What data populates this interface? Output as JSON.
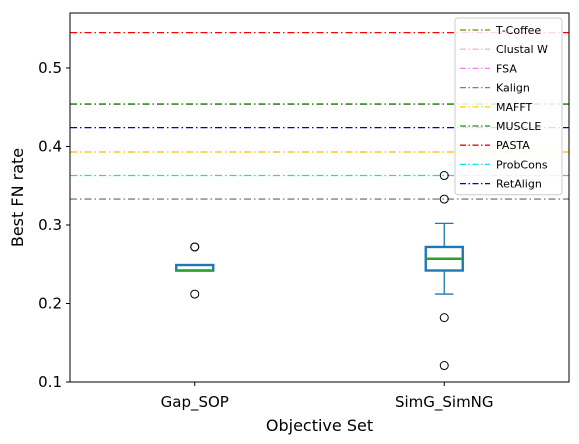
{
  "chart_data": {
    "type": "box",
    "xlabel": "Objective Set",
    "ylabel": "Best FN rate",
    "ylim": [
      0.1,
      0.57
    ],
    "yticks": [
      0.1,
      0.2,
      0.3,
      0.4,
      0.5
    ],
    "categories": [
      "Gap_SOP",
      "SimG_SimNG"
    ],
    "boxes": [
      {
        "name": "Gap_SOP",
        "whisker_low": 0.242,
        "q1": 0.242,
        "median": 0.242,
        "q3": 0.249,
        "whisker_high": 0.249,
        "outliers": [
          0.212,
          0.272,
          0.272
        ]
      },
      {
        "name": "SimG_SimNG",
        "whisker_low": 0.212,
        "q1": 0.242,
        "median": 0.257,
        "q3": 0.272,
        "whisker_high": 0.302,
        "outliers": [
          0.121,
          0.182,
          0.333,
          0.363
        ]
      }
    ],
    "reference_lines": [
      {
        "name": "T-Coffee",
        "value": 0.454,
        "color": "#808000"
      },
      {
        "name": "Clustal W",
        "value": 0.393,
        "color": "#ffb6c1"
      },
      {
        "name": "FSA",
        "value": 0.393,
        "color": "#ee82ee"
      },
      {
        "name": "Kalign",
        "value": 0.333,
        "color": "#808080"
      },
      {
        "name": "MAFFT",
        "value": 0.393,
        "color": "#ffd700"
      },
      {
        "name": "MUSCLE",
        "value": 0.454,
        "color": "#228b22"
      },
      {
        "name": "PASTA",
        "value": 0.545,
        "color": "#ff0000"
      },
      {
        "name": "ProbCons",
        "value": 0.363,
        "color": "#00e5ee"
      },
      {
        "name": "RetAlign",
        "value": 0.424,
        "color": "#0000cd"
      }
    ],
    "legend_position": "top-right",
    "grid": false,
    "box_color": "#1f77b4",
    "median_color": "#2ca02c"
  }
}
